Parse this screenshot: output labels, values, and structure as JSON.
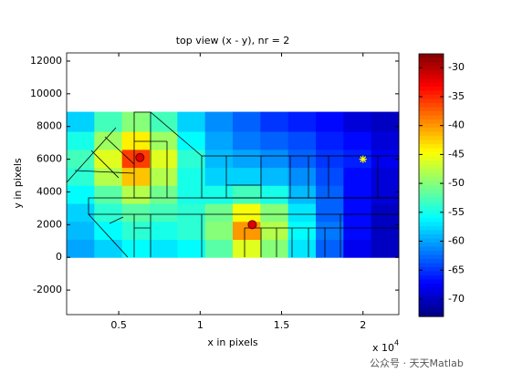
{
  "chart_data": {
    "type": "heatmap",
    "title": "top view (x - y), nr = 2",
    "xlabel": "x in pixels",
    "ylabel": "y in pixels",
    "x_exponent_base": "x 10",
    "x_exponent": "4",
    "watermark": "公众号 · 天天Matlab",
    "colormap": "jet",
    "xlim": [
      1800,
      22200
    ],
    "ylim": [
      -3500,
      12500
    ],
    "xticks": [
      {
        "value": 5000,
        "label": "0.5"
      },
      {
        "value": 10000,
        "label": "1"
      },
      {
        "value": 15000,
        "label": "1.5"
      },
      {
        "value": 20000,
        "label": "2"
      }
    ],
    "yticks": [
      -2000,
      0,
      2000,
      4000,
      6000,
      8000,
      10000,
      12000
    ],
    "xbins": [
      1800,
      3500,
      5200,
      6900,
      8600,
      10300,
      12000,
      13700,
      15400,
      17100,
      18800,
      20500,
      22200
    ],
    "ybins": [
      0,
      1100,
      2200,
      3300,
      4400,
      5500,
      6600,
      7700,
      8900
    ],
    "values": [
      [
        -60,
        -58,
        -56,
        -57,
        -56,
        -52,
        -46,
        -50,
        -57,
        -63,
        -68,
        -70
      ],
      [
        -59,
        -56,
        -54,
        -55,
        -54,
        -50,
        -40,
        -48,
        -56,
        -62,
        -67,
        -70
      ],
      [
        -58,
        -54,
        -52,
        -53,
        -54,
        -51,
        -45,
        -50,
        -57,
        -63,
        -67,
        -70
      ],
      [
        -56,
        -52,
        -48,
        -51,
        -55,
        -55,
        -53,
        -55,
        -59,
        -63,
        -67,
        -69
      ],
      [
        -54,
        -48,
        -42,
        -48,
        -55,
        -58,
        -58,
        -59,
        -61,
        -64,
        -67,
        -69
      ],
      [
        -53,
        -46,
        -36,
        -46,
        -54,
        -59,
        -60,
        -61,
        -63,
        -65,
        -66,
        -68
      ],
      [
        -55,
        -49,
        -44,
        -49,
        -56,
        -60,
        -62,
        -63,
        -64,
        -66,
        -67,
        -69
      ],
      [
        -58,
        -53,
        -50,
        -53,
        -58,
        -61,
        -63,
        -65,
        -66,
        -67,
        -69,
        -70
      ]
    ],
    "transmitters": {
      "x": [
        6300,
        13200
      ],
      "y": [
        6100,
        2000
      ]
    },
    "receiver": {
      "x": [
        20000
      ],
      "y": [
        6000
      ]
    },
    "clim": [
      -73,
      -27.6
    ],
    "cticks": [
      -70,
      -65,
      -60,
      -55,
      -50,
      -45,
      -40,
      -35,
      -30
    ]
  }
}
